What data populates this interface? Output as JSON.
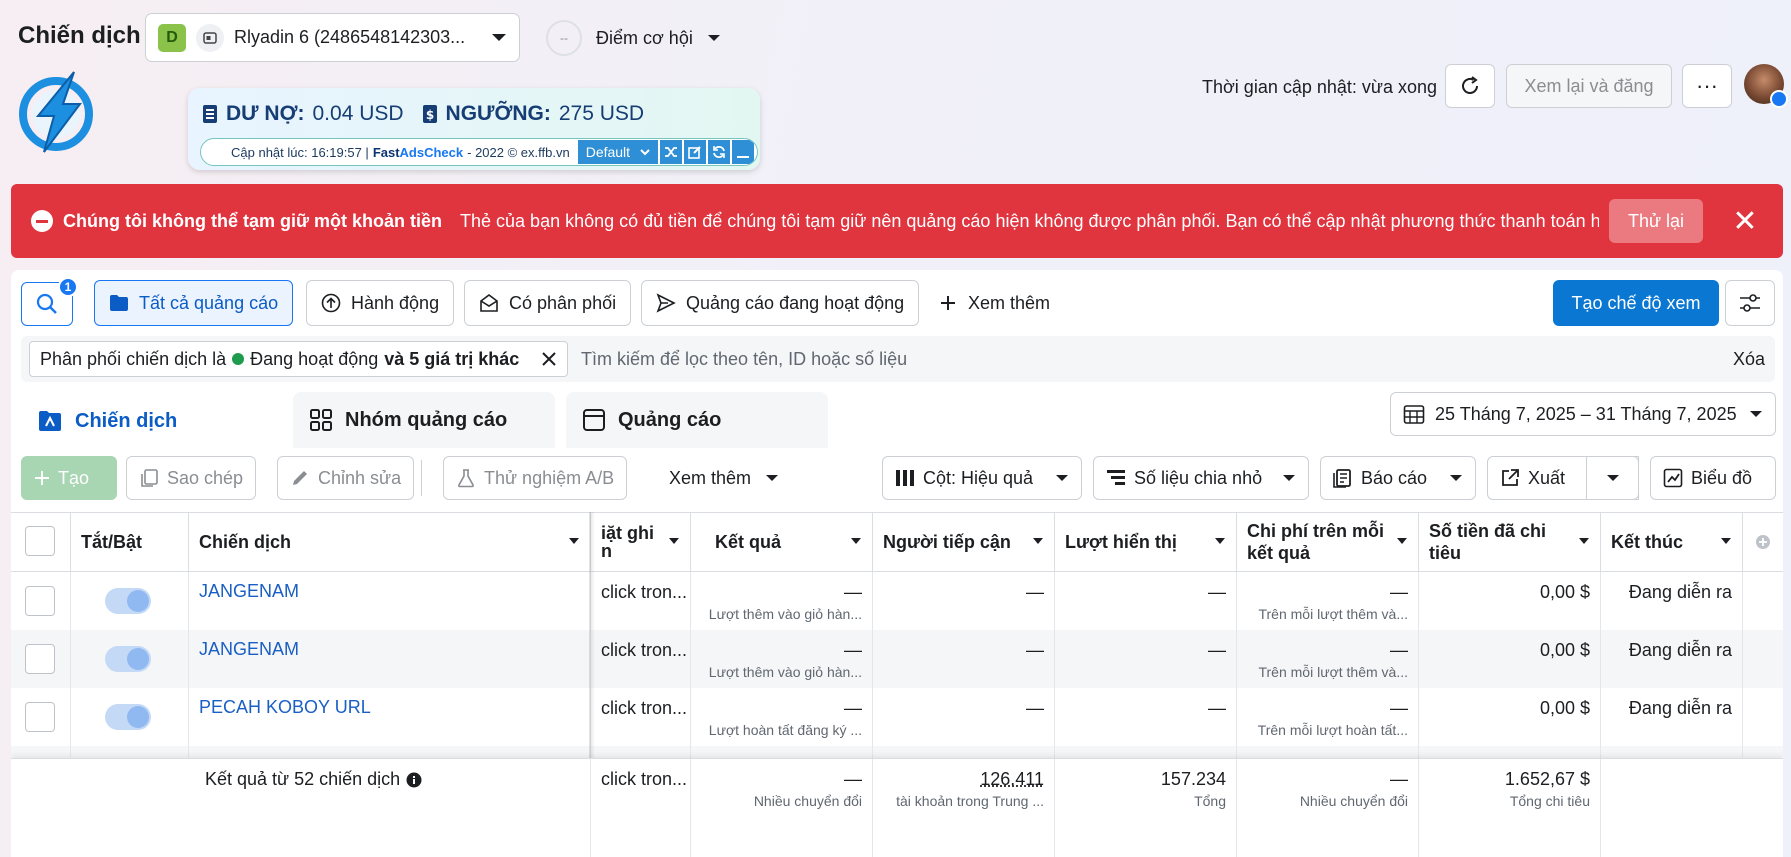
{
  "header": {
    "title": "Chiến dịch",
    "account_badge": "D",
    "account_name": "Rlyadin 6 (2486548142303...",
    "opportunity_circle": "--",
    "opportunity_label": "Điểm cơ hội",
    "update_time": "Thời gian cập nhật: vừa xong",
    "review_publish": "Xem lại và đăng",
    "more": "···"
  },
  "extension": {
    "debt_label": "DƯ NỢ:",
    "debt_value": "0.04 USD",
    "threshold_label": "NGƯỠNG:",
    "threshold_value": "275 USD",
    "updated_prefix": "Cập nhật lúc: 16:19:57 |",
    "fast": "Fast",
    "adscheck": "AdsCheck",
    "suffix": "- 2022 © ex.ffb.vn",
    "preset": "Default"
  },
  "alert": {
    "title": "Chúng tôi không thể tạm giữ một khoản tiền",
    "message": "Thẻ của bạn không có đủ tiền để chúng tôi tạm giữ nên quảng cáo hiện không được phân phối. Bạn có thể cập nhật phương thức thanh toán hoặ...",
    "retry": "Thử lại",
    "close": "✕"
  },
  "filters": {
    "search_count": "1",
    "chips": [
      "Tất cả quảng cáo",
      "Hành động",
      "Có phân phối",
      "Quảng cáo đang hoạt động"
    ],
    "see_more": "Xem thêm",
    "create_view": "Tạo chế độ xem",
    "tag_prefix": "Phân phối chiến dịch là",
    "tag_status": "Đang hoạt động",
    "tag_suffix": "và 5 giá trị khác",
    "search_placeholder": "Tìm kiếm để lọc theo tên, ID hoặc số liệu",
    "clear": "Xóa"
  },
  "tabs": [
    "Chiến dịch",
    "Nhóm quảng cáo",
    "Quảng cáo"
  ],
  "date_range": "25 Tháng 7, 2025 – 31 Tháng 7, 2025",
  "toolbar": {
    "create": "Tạo",
    "copy": "Sao chép",
    "edit": "Chỉnh sửa",
    "ab_test": "Thử nghiệm A/B",
    "see_more": "Xem thêm",
    "columns": "Cột: Hiệu quả",
    "breakdown": "Số liệu chia nhỏ",
    "reports": "Báo cáo",
    "export": "Xuất",
    "chart": "Biểu đồ"
  },
  "table": {
    "headers": {
      "toggle": "Tắt/Bật",
      "campaign": "Chiến dịch",
      "attribution_1": "iặt ghi",
      "attribution_2": "n",
      "results": "Kết quả",
      "reach": "Người tiếp cận",
      "impressions": "Lượt hiển thị",
      "cpr_1": "Chi phí trên mỗi",
      "cpr_2": "kết quả",
      "spent_1": "Số tiền đã chi",
      "spent_2": "tiêu",
      "end": "Kết thúc"
    },
    "rows": [
      {
        "name": "JANGENAM",
        "attribution": "click tron...",
        "result": "—",
        "result_sub": "Lượt thêm vào giỏ hàn...",
        "reach": "—",
        "impressions": "—",
        "cpr": "—",
        "cpr_sub": "Trên mỗi lượt thêm và...",
        "spent": "0,00 $",
        "end": "Đang diễn ra"
      },
      {
        "name": "JANGENAM",
        "attribution": "click tron...",
        "result": "—",
        "result_sub": "Lượt thêm vào giỏ hàn...",
        "reach": "—",
        "impressions": "—",
        "cpr": "—",
        "cpr_sub": "Trên mỗi lượt thêm và...",
        "spent": "0,00 $",
        "end": "Đang diễn ra"
      },
      {
        "name": "PECAH KOBOY URL",
        "attribution": "click tron...",
        "result": "—",
        "result_sub": "Lượt hoàn tất đăng ký ...",
        "reach": "—",
        "impressions": "—",
        "cpr": "—",
        "cpr_sub": "Trên mỗi lượt hoàn tất...",
        "spent": "0,00 $",
        "end": "Đang diễn ra"
      }
    ],
    "footer": {
      "label": "Kết quả từ 52 chiến dịch",
      "attribution": "click tron...",
      "result": "—",
      "result_sub": "Nhiều chuyển đổi",
      "reach": "126.411",
      "reach_sub": "tài khoản trong Trung ...",
      "impressions": "157.234",
      "impressions_sub": "Tổng",
      "cpr": "—",
      "cpr_sub": "Nhiều chuyển đổi",
      "spent": "1.652,67 $",
      "spent_sub": "Tổng chi tiêu"
    }
  }
}
